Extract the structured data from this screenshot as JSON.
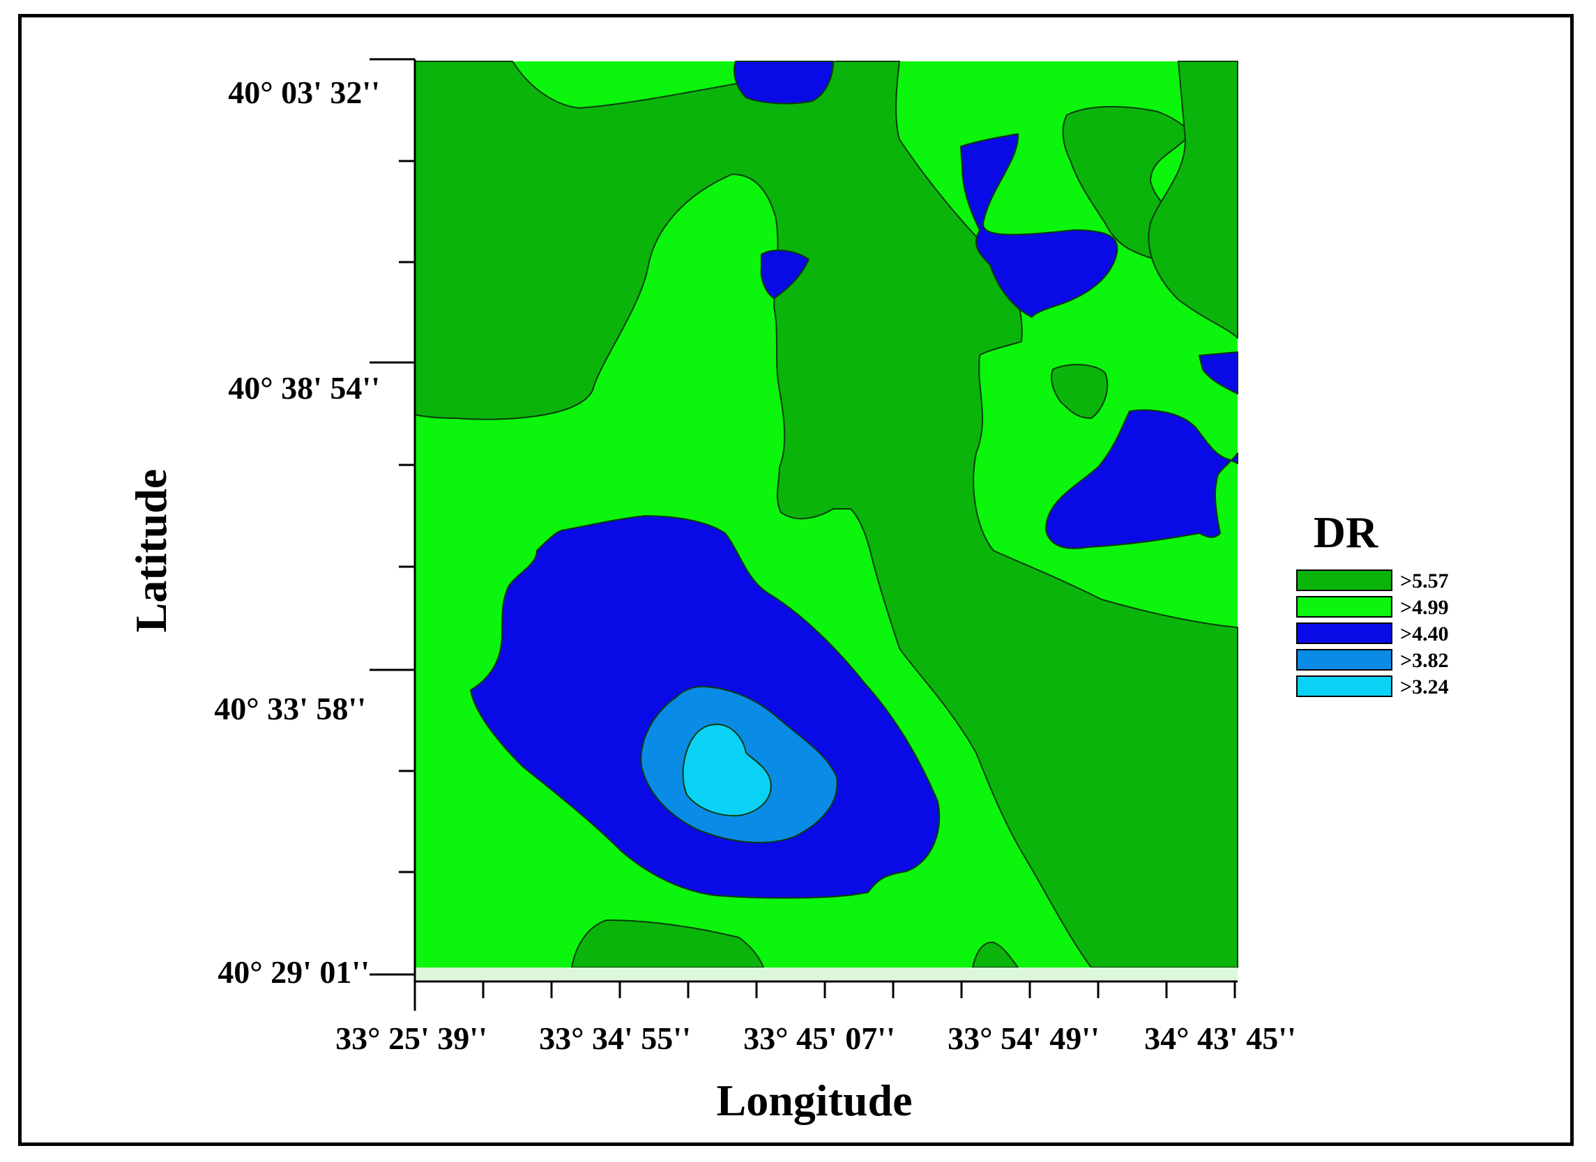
{
  "map": {
    "x_axis_label": "Longitude",
    "y_axis_label": "Latitude",
    "legend_title": "DR",
    "x_ticks": [
      "33° 25' 39''",
      "33° 34' 55''",
      "33° 45' 07''",
      "33° 54' 49''",
      "34° 43' 45''"
    ],
    "y_ticks": [
      "40° 03' 32''",
      "40° 38' 54''",
      "40° 33' 58''",
      "40° 29' 01''"
    ],
    "legend": [
      {
        "label": ">5.57",
        "color": "#0ab40a"
      },
      {
        "label": ">4.99",
        "color": "#0cf50c"
      },
      {
        "label": ">4.40",
        "color": "#0a0ae6"
      },
      {
        "label": ">3.82",
        "color": "#0a8ce6"
      },
      {
        "label": ">3.24",
        "color": "#0ad2f5"
      }
    ]
  }
}
